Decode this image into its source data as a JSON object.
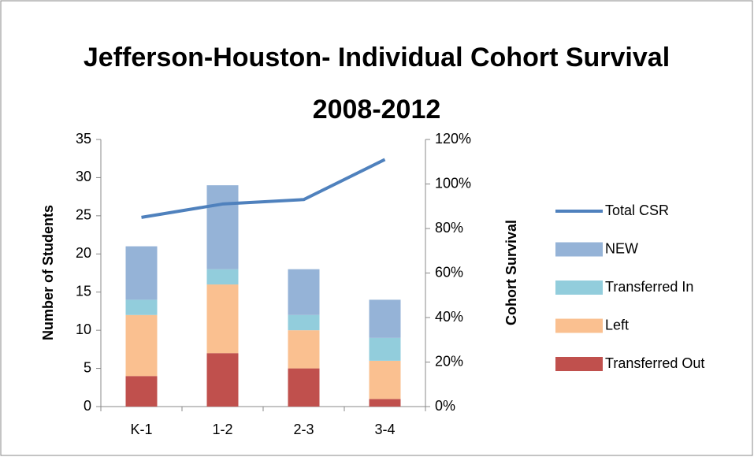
{
  "chart_data": {
    "type": "bar",
    "stacked": true,
    "title": "Jefferson-Houston- Individual Cohort Survival 2008-2012",
    "y_label": "Number of Students",
    "y2_label": "Cohort Survival",
    "categories": [
      "K-1",
      "1-2",
      "2-3",
      "3-4"
    ],
    "series": [
      {
        "name": "Transferred Out",
        "color": "#c0504d",
        "values": [
          4,
          7,
          5,
          1
        ]
      },
      {
        "name": "Left",
        "color": "#fac090",
        "values": [
          8,
          9,
          5,
          5
        ]
      },
      {
        "name": "Transferred In",
        "color": "#92cddc",
        "values": [
          2,
          2,
          2,
          3
        ]
      },
      {
        "name": "NEW",
        "color": "#95b3d7",
        "values": [
          7,
          11,
          6,
          5
        ]
      },
      {
        "name": "Total CSR",
        "color": "#4f81bd",
        "type": "line",
        "axis": "y2",
        "values": [
          85,
          91,
          93,
          111
        ]
      }
    ],
    "ylim": [
      0,
      35
    ],
    "yticks": [
      0,
      5,
      10,
      15,
      20,
      25,
      30,
      35
    ],
    "y2lim": [
      0,
      120
    ],
    "y2ticks": [
      {
        "value": 0,
        "label": "0%"
      },
      {
        "value": 20,
        "label": "20%"
      },
      {
        "value": 40,
        "label": "40%"
      },
      {
        "value": 60,
        "label": "60%"
      },
      {
        "value": 80,
        "label": "80%"
      },
      {
        "value": 100,
        "label": "100%"
      },
      {
        "value": 120,
        "label": "120%"
      }
    ],
    "grid": false,
    "legend": "right"
  }
}
